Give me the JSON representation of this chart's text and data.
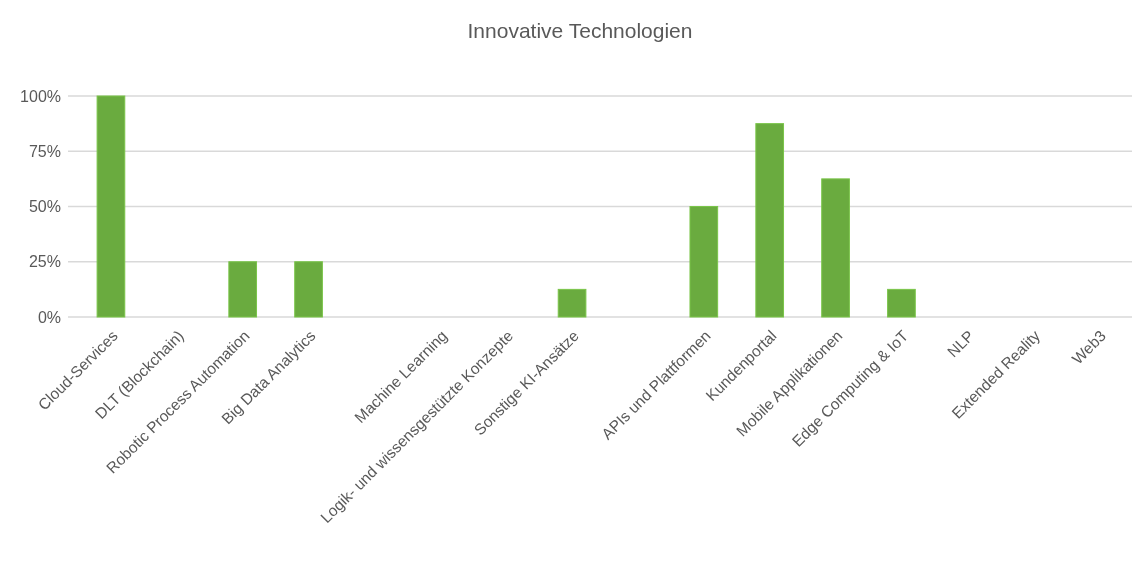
{
  "chart_data": {
    "type": "bar",
    "title": "Innovative Technologien",
    "categories": [
      "Cloud-Services",
      "DLT (Blockchain)",
      "Robotic Process Automation",
      "Big Data Analytics",
      null,
      "Machine Learning",
      "Logik- und wissensgestützte Konzepte",
      "Sonstige KI-Ansätze",
      null,
      "APIs und Plattformen",
      "Kundenportal",
      "Mobile Applikationen",
      "Edge Computing & IoT",
      "NLP",
      "Extended Reality",
      "Web3"
    ],
    "values": [
      100,
      0,
      25,
      25,
      0,
      0,
      0,
      12.5,
      0,
      50,
      87.5,
      62.5,
      12.5,
      0,
      0,
      0
    ],
    "color": "#6aab3f",
    "ylim": [
      0,
      100
    ],
    "yticks": [
      {
        "value": 0,
        "label": "0%"
      },
      {
        "value": 25,
        "label": "25%"
      },
      {
        "value": 50,
        "label": "50%"
      },
      {
        "value": 75,
        "label": "75%"
      },
      {
        "value": 100,
        "label": "100%"
      }
    ],
    "grid": "y"
  }
}
